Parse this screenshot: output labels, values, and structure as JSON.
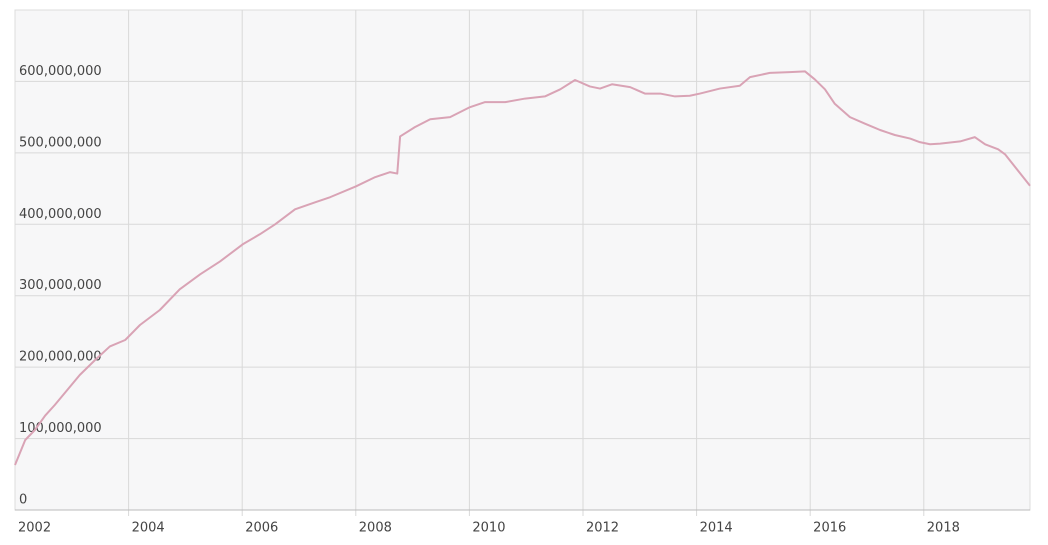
{
  "chart_data": {
    "type": "line",
    "x": [
      2002.0,
      2002.18,
      2002.35,
      2002.53,
      2002.7,
      2002.92,
      2003.14,
      2003.41,
      2003.67,
      2003.94,
      2004.2,
      2004.55,
      2004.9,
      2005.26,
      2005.61,
      2006.01,
      2006.31,
      2006.58,
      2006.93,
      2007.29,
      2007.55,
      2008.0,
      2008.34,
      2008.6,
      2008.73,
      2008.78,
      2009.04,
      2009.31,
      2009.66,
      2010.01,
      2010.27,
      2010.63,
      2010.98,
      2011.33,
      2011.6,
      2011.86,
      2012.12,
      2012.3,
      2012.51,
      2012.83,
      2013.09,
      2013.36,
      2013.62,
      2013.88,
      2014.06,
      2014.41,
      2014.76,
      2014.94,
      2015.29,
      2015.64,
      2015.91,
      2016.08,
      2016.26,
      2016.43,
      2016.7,
      2016.96,
      2017.23,
      2017.49,
      2017.76,
      2017.93,
      2018.11,
      2018.29,
      2018.64,
      2018.9,
      2019.08,
      2019.31,
      2019.43,
      2019.87
    ],
    "values": [
      63000000,
      98000000,
      112000000,
      132000000,
      147000000,
      168000000,
      189000000,
      210000000,
      229000000,
      238000000,
      259000000,
      280000000,
      309000000,
      330000000,
      348000000,
      372000000,
      386000000,
      400000000,
      421000000,
      431000000,
      438000000,
      453000000,
      466000000,
      473000000,
      471000000,
      523000000,
      536000000,
      547000000,
      550000000,
      564000000,
      571000000,
      571000000,
      576000000,
      579000000,
      589000000,
      602000000,
      593000000,
      590000000,
      596000000,
      592000000,
      583000000,
      583000000,
      579000000,
      580000000,
      583000000,
      590000000,
      594000000,
      606000000,
      612000000,
      613000000,
      614000000,
      603000000,
      589000000,
      569000000,
      550000000,
      541000000,
      532000000,
      525000000,
      520000000,
      515000000,
      512000000,
      513000000,
      516000000,
      522000000,
      512000000,
      505000000,
      498000000,
      454000000
    ],
    "color": "#d9a3b5",
    "xlim": [
      2002,
      2019.87
    ],
    "xticks": [
      2002,
      2004,
      2006,
      2008,
      2010,
      2012,
      2014,
      2016,
      2018
    ],
    "ylim": [
      0,
      700000000
    ],
    "yticks": [
      0,
      {
        "value": 100000000,
        "label": "100,000,000"
      },
      {
        "value": 200000000,
        "label": "200,000,000"
      },
      {
        "value": 300000000,
        "label": "300,000,000"
      },
      {
        "value": 400000000,
        "label": "400,000,000"
      },
      {
        "value": 500000000,
        "label": "500,000,000"
      },
      {
        "value": 600000000,
        "label": "600,000,000"
      }
    ],
    "grid": true
  }
}
